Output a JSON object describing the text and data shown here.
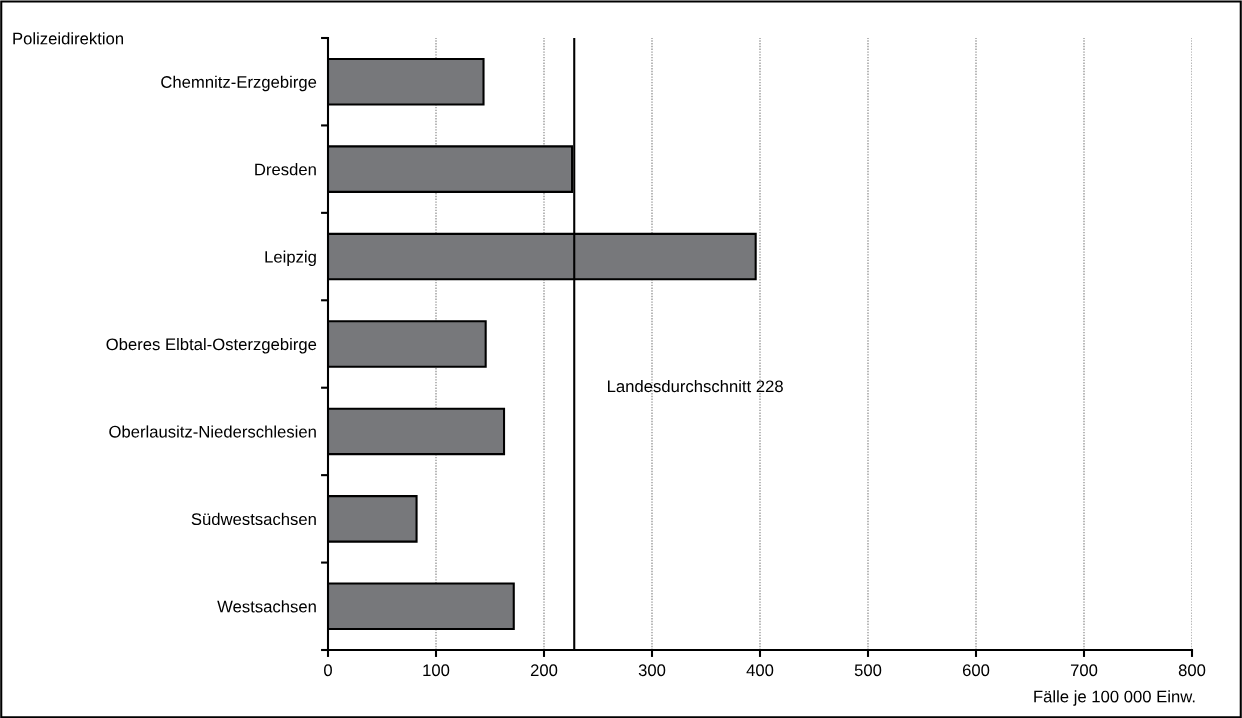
{
  "chart_data": {
    "type": "bar",
    "orientation": "horizontal",
    "categories": [
      "Chemnitz-Erzgebirge",
      "Dresden",
      "Leipzig",
      "Oberes Elbtal-Osterzgebirge",
      "Oberlausitz-Niederschlesien",
      "Südwestsachsen",
      "Westsachsen"
    ],
    "series": [
      {
        "color": "#77787b",
        "values": [
          144,
          226,
          396,
          146,
          163,
          82,
          172
        ]
      }
    ],
    "xlim": [
      0,
      800
    ],
    "xticks": [
      0,
      100,
      200,
      300,
      400,
      500,
      600,
      700,
      800
    ],
    "xlabel": "Fälle je 100 000 Einw.",
    "ylabel": "Polizeidirektion",
    "ref_lines": [
      {
        "axis": "x",
        "value": 228,
        "label": "Landesdurchschnitt 228",
        "color": "#000000",
        "line_style": "solid"
      }
    ],
    "grid": "x",
    "legend": false
  }
}
